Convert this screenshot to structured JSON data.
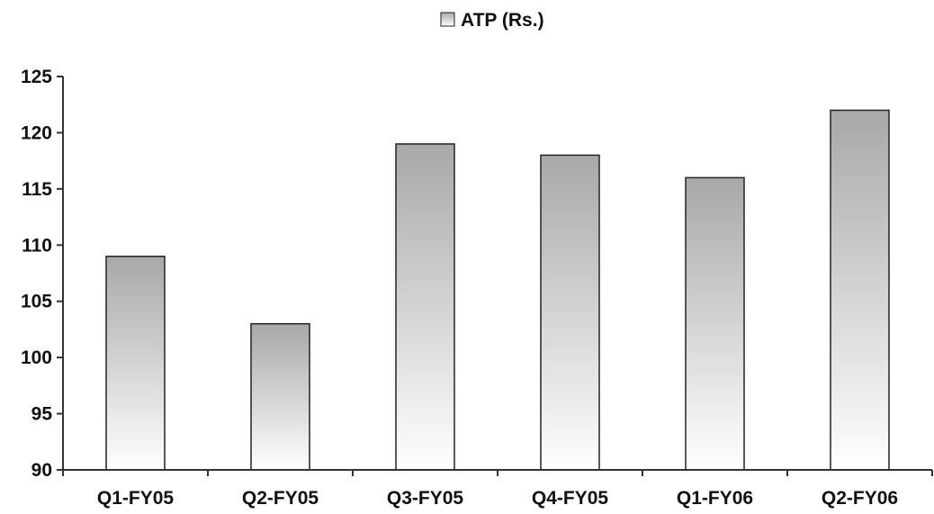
{
  "chart_data": {
    "type": "bar",
    "categories": [
      "Q1-FY05",
      "Q2-FY05",
      "Q3-FY05",
      "Q4-FY05",
      "Q1-FY06",
      "Q2-FY06"
    ],
    "series": [
      {
        "name": "ATP (Rs.)",
        "values": [
          109,
          103,
          119,
          118,
          116,
          122
        ]
      }
    ],
    "title": "",
    "xlabel": "",
    "ylabel": "",
    "ylim": [
      90,
      125
    ],
    "yticks": [
      "90",
      "95",
      "100",
      "105",
      "110",
      "115",
      "120",
      "125"
    ],
    "grid": false,
    "legend": {
      "position": "top-center",
      "entries": [
        "ATP (Rs.)"
      ]
    },
    "colors": {
      "bar_top": "#a8a8a8",
      "bar_bottom": "#ffffff",
      "bar_stroke": "#222222",
      "axis": "#333333"
    }
  }
}
